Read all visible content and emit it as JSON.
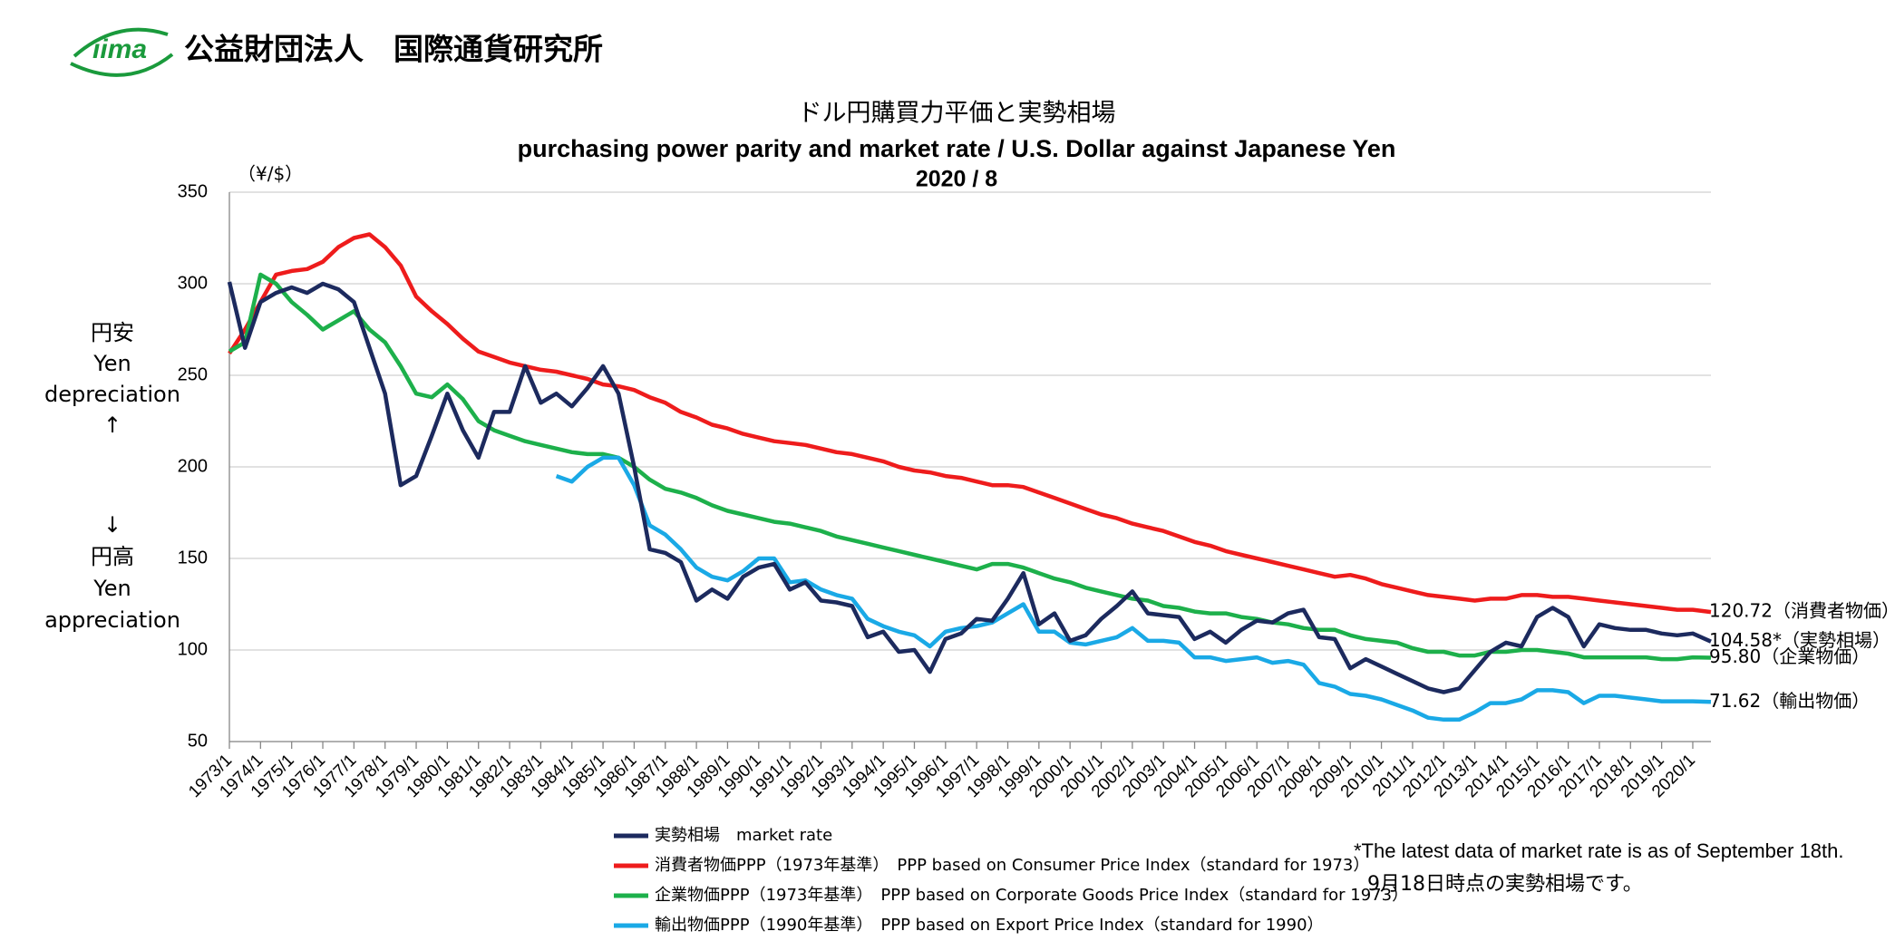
{
  "header": {
    "logo": "iima",
    "organization": "公益財団法人　国際通貨研究所"
  },
  "chart_data": {
    "type": "line",
    "title": "ドル円購買力平価と実勢相場",
    "subtitle": "purchasing power parity and market rate / U.S. Dollar against Japanese Yen",
    "date": "2020 / 8",
    "y_unit": "（¥/$）",
    "annotations_up": [
      "円安",
      "Yen",
      "depreciation",
      "↑"
    ],
    "annotations_down": [
      "↓",
      "円高",
      "Yen",
      "appreciation"
    ],
    "note": [
      "*The latest data of market rate is as of September 18th.",
      "9月18日時点の実勢相場です。"
    ],
    "ylim": [
      50,
      350
    ],
    "yticks": [
      50,
      100,
      150,
      200,
      250,
      300,
      350
    ],
    "grid": true,
    "xlim": [
      "1973/1",
      "2020/8"
    ],
    "xticks": [
      "1973/1",
      "1974/1",
      "1975/1",
      "1976/1",
      "1977/1",
      "1978/1",
      "1979/1",
      "1980/1",
      "1981/1",
      "1982/1",
      "1983/1",
      "1984/1",
      "1985/1",
      "1986/1",
      "1987/1",
      "1988/1",
      "1989/1",
      "1990/1",
      "1991/1",
      "1992/1",
      "1993/1",
      "1994/1",
      "1995/1",
      "1996/1",
      "1997/1",
      "1998/1",
      "1999/1",
      "2000/1",
      "2001/1",
      "2002/1",
      "2003/1",
      "2004/1",
      "2005/1",
      "2006/1",
      "2007/1",
      "2008/1",
      "2009/1",
      "2010/1",
      "2011/1",
      "2012/1",
      "2013/1",
      "2014/1",
      "2015/1",
      "2016/1",
      "2017/1",
      "2018/1",
      "2019/1",
      "2020/1"
    ],
    "x": [
      "1973/1",
      "1973/7",
      "1974/1",
      "1974/7",
      "1975/1",
      "1975/7",
      "1976/1",
      "1976/7",
      "1977/1",
      "1977/7",
      "1978/1",
      "1978/7",
      "1979/1",
      "1979/7",
      "1980/1",
      "1980/7",
      "1981/1",
      "1981/7",
      "1982/1",
      "1982/7",
      "1983/1",
      "1983/7",
      "1984/1",
      "1984/7",
      "1985/1",
      "1985/7",
      "1986/1",
      "1986/7",
      "1987/1",
      "1987/7",
      "1988/1",
      "1988/7",
      "1989/1",
      "1989/7",
      "1990/1",
      "1990/7",
      "1991/1",
      "1991/7",
      "1992/1",
      "1992/7",
      "1993/1",
      "1993/7",
      "1994/1",
      "1994/7",
      "1995/1",
      "1995/7",
      "1996/1",
      "1996/7",
      "1997/1",
      "1997/7",
      "1998/1",
      "1998/7",
      "1999/1",
      "1999/7",
      "2000/1",
      "2000/7",
      "2001/1",
      "2001/7",
      "2002/1",
      "2002/7",
      "2003/1",
      "2003/7",
      "2004/1",
      "2004/7",
      "2005/1",
      "2005/7",
      "2006/1",
      "2006/7",
      "2007/1",
      "2007/7",
      "2008/1",
      "2008/7",
      "2009/1",
      "2009/7",
      "2010/1",
      "2010/7",
      "2011/1",
      "2011/7",
      "2012/1",
      "2012/7",
      "2013/1",
      "2013/7",
      "2014/1",
      "2014/7",
      "2015/1",
      "2015/7",
      "2016/1",
      "2016/7",
      "2017/1",
      "2017/7",
      "2018/1",
      "2018/7",
      "2019/1",
      "2019/7",
      "2020/1",
      "2020/8"
    ],
    "series": [
      {
        "name": "消費者物価PPP（1973年基準）　PPP based on Consumer Price Index（standard for 1973）",
        "color": "#ee1c1c",
        "end_label": "120.72（消費者物価）",
        "values": [
          262,
          275,
          290,
          305,
          307,
          308,
          312,
          320,
          325,
          327,
          320,
          310,
          293,
          285,
          278,
          270,
          263,
          260,
          257,
          255,
          253,
          252,
          250,
          248,
          245,
          244,
          242,
          238,
          235,
          230,
          227,
          223,
          221,
          218,
          216,
          214,
          213,
          212,
          210,
          208,
          207,
          205,
          203,
          200,
          198,
          197,
          195,
          194,
          192,
          190,
          190,
          189,
          186,
          183,
          180,
          177,
          174,
          172,
          169,
          167,
          165,
          162,
          159,
          157,
          154,
          152,
          150,
          148,
          146,
          144,
          142,
          140,
          141,
          139,
          136,
          134,
          132,
          130,
          129,
          128,
          127,
          128,
          128,
          130,
          130,
          129,
          129,
          128,
          127,
          126,
          125,
          124,
          123,
          122,
          122,
          120.72
        ]
      },
      {
        "name": "企業物価PPP（1973年基準）　PPP based on Corporate Goods Price Index（standard for 1973）",
        "color": "#1db04b",
        "end_label": "95.80（企業物価）",
        "values": [
          263,
          268,
          305,
          300,
          290,
          283,
          275,
          280,
          285,
          275,
          268,
          255,
          240,
          238,
          245,
          237,
          225,
          220,
          217,
          214,
          212,
          210,
          208,
          207,
          207,
          205,
          200,
          193,
          188,
          186,
          183,
          179,
          176,
          174,
          172,
          170,
          169,
          167,
          165,
          162,
          160,
          158,
          156,
          154,
          152,
          150,
          148,
          146,
          144,
          147,
          147,
          145,
          142,
          139,
          137,
          134,
          132,
          130,
          128,
          127,
          124,
          123,
          121,
          120,
          120,
          118,
          117,
          115,
          114,
          112,
          111,
          111,
          108,
          106,
          105,
          104,
          101,
          99,
          99,
          97,
          97,
          99,
          99,
          100,
          100,
          99,
          98,
          96,
          96,
          96,
          96,
          96,
          95,
          95,
          96,
          95.8
        ]
      },
      {
        "name": "輸出物価PPP（1990年基準）　PPP based on Export Price Index（standard for 1990）",
        "color": "#1aa9e6",
        "end_label": "71.62（輸出物価）",
        "values": [
          null,
          null,
          null,
          null,
          null,
          null,
          null,
          null,
          null,
          null,
          null,
          null,
          null,
          null,
          null,
          null,
          null,
          null,
          null,
          null,
          null,
          195,
          192,
          200,
          205,
          205,
          190,
          168,
          163,
          155,
          145,
          140,
          138,
          143,
          150,
          150,
          137,
          138,
          133,
          130,
          128,
          117,
          113,
          110,
          108,
          102,
          110,
          112,
          113,
          115,
          120,
          125,
          110,
          110,
          104,
          103,
          105,
          107,
          112,
          105,
          105,
          104,
          96,
          96,
          94,
          95,
          96,
          93,
          94,
          92,
          82,
          80,
          76,
          75,
          73,
          70,
          67,
          63,
          62,
          62,
          66,
          71,
          71,
          73,
          78,
          78,
          77,
          71,
          75,
          75,
          74,
          73,
          72,
          72,
          72,
          71.62
        ]
      },
      {
        "name": "実勢相場　market rate",
        "color": "#1c2a5e",
        "end_label": "104.58*（実勢相場）",
        "values": [
          301,
          265,
          290,
          295,
          298,
          295,
          300,
          297,
          290,
          265,
          240,
          190,
          195,
          217,
          240,
          220,
          205,
          230,
          230,
          255,
          235,
          240,
          233,
          243,
          255,
          240,
          200,
          155,
          153,
          148,
          127,
          133,
          128,
          140,
          145,
          147,
          133,
          137,
          127,
          126,
          124,
          107,
          110,
          99,
          100,
          88,
          106,
          109,
          117,
          116,
          128,
          142,
          114,
          120,
          105,
          108,
          117,
          124,
          132,
          120,
          119,
          118,
          106,
          110,
          104,
          111,
          116,
          115,
          120,
          122,
          107,
          106,
          90,
          95,
          91,
          87,
          83,
          79,
          77,
          79,
          89,
          99,
          104,
          102,
          118,
          123,
          118,
          102,
          114,
          112,
          111,
          111,
          109,
          108,
          109,
          104.58
        ]
      }
    ]
  }
}
